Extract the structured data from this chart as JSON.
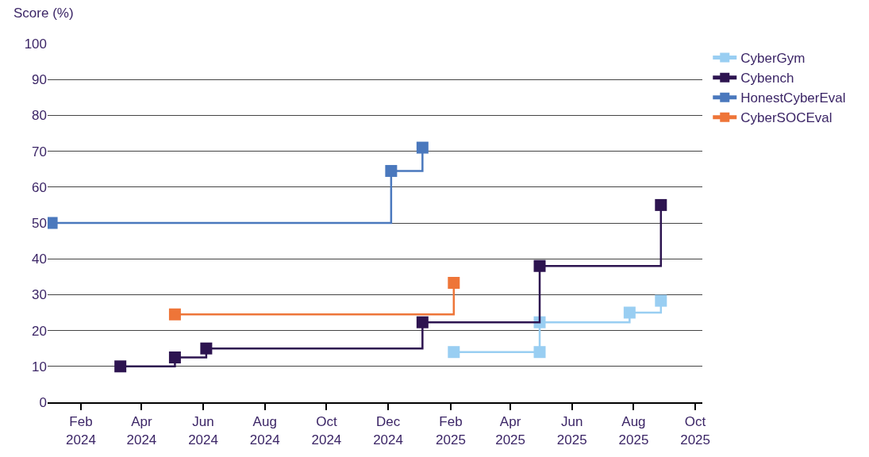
{
  "chart_data": {
    "type": "step",
    "ylabel": "Score (%)",
    "series": [
      {
        "name": "CyberGym",
        "color": "#99cef2",
        "x": [
          "2025-02-04",
          "2025-04-30",
          "2025-04-30",
          "2025-07-28",
          "2025-08-28"
        ],
        "values": [
          14,
          14,
          22.3,
          25,
          28.3
        ]
      },
      {
        "name": "Cybench",
        "color": "#2d1450",
        "x": [
          "2024-03-11",
          "2024-05-04",
          "2024-06-04",
          "2025-01-04",
          "2025-04-30",
          "2025-08-28"
        ],
        "values": [
          10,
          12.5,
          15,
          22.3,
          38,
          55
        ]
      },
      {
        "name": "HonestCyberEval",
        "color": "#4a78bd",
        "x": [
          "2024-01-03",
          "2024-12-04",
          "2025-01-04"
        ],
        "values": [
          50,
          64.5,
          71
        ]
      },
      {
        "name": "CyberSOCEval",
        "color": "#ee7538",
        "x": [
          "2024-05-04",
          "2025-02-04"
        ],
        "values": [
          24.5,
          33.3
        ]
      }
    ],
    "xlim": [
      "2023-12-30",
      "2025-10-08"
    ],
    "xticks": [
      {
        "value": "2024-02-01",
        "label": "Feb\n2024"
      },
      {
        "value": "2024-04-01",
        "label": "Apr\n2024"
      },
      {
        "value": "2024-06-01",
        "label": "Jun\n2024"
      },
      {
        "value": "2024-08-01",
        "label": "Aug\n2024"
      },
      {
        "value": "2024-10-01",
        "label": "Oct\n2024"
      },
      {
        "value": "2024-12-01",
        "label": "Dec\n2024"
      },
      {
        "value": "2025-02-01",
        "label": "Feb\n2025"
      },
      {
        "value": "2025-04-01",
        "label": "Apr\n2025"
      },
      {
        "value": "2025-06-01",
        "label": "Jun\n2025"
      },
      {
        "value": "2025-08-01",
        "label": "Aug\n2025"
      },
      {
        "value": "2025-10-01",
        "label": "Oct\n2025"
      }
    ],
    "ylim": [
      0,
      100
    ],
    "yticks": [
      0,
      10,
      20,
      30,
      40,
      50,
      60,
      70,
      80,
      90,
      100
    ],
    "grid": "y",
    "legend": "top right",
    "marker": "square",
    "line_style": "solid"
  }
}
